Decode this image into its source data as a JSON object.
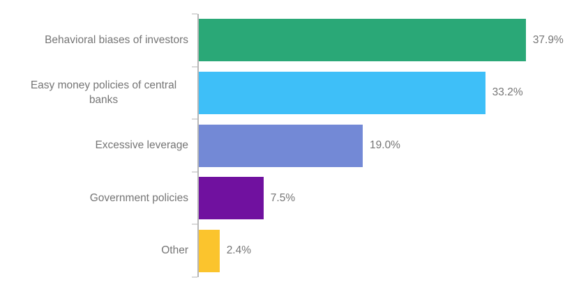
{
  "chart_data": {
    "type": "bar",
    "orientation": "horizontal",
    "title": "",
    "xlabel": "",
    "ylabel": "",
    "categories": [
      "Behavioral biases of investors",
      "Easy money policies of central banks",
      "Excessive leverage",
      "Government policies",
      "Other"
    ],
    "values": [
      37.9,
      33.2,
      19.0,
      7.5,
      2.4
    ],
    "value_labels": [
      "37.9%",
      "33.2%",
      "19.0%",
      "7.5%",
      "2.4%"
    ],
    "bar_colors": [
      "#2aa877",
      "#3ebff8",
      "#7389d6",
      "#70119f",
      "#fbc42d"
    ],
    "xlim": [
      0,
      42.5
    ],
    "grid": false,
    "legend": "none",
    "colors": {
      "axis_line": "#b7b7b7",
      "tick": "#d9d9d9",
      "label_text": "#757575",
      "background": "#ffffff"
    }
  }
}
